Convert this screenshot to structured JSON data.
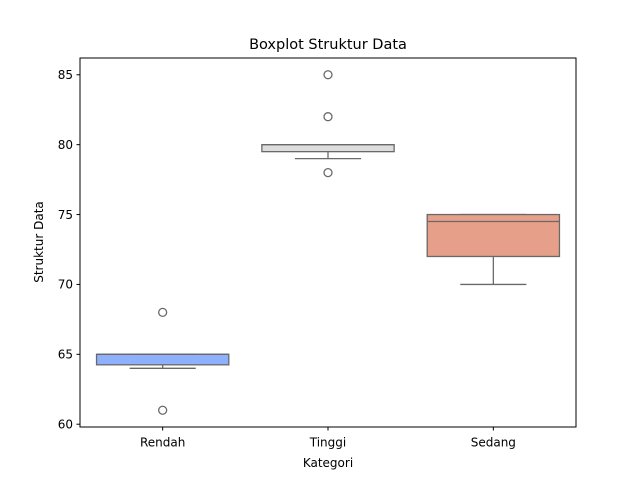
{
  "chart_data": {
    "type": "boxplot",
    "title": "Boxplot Struktur Data",
    "xlabel": "Kategori",
    "ylabel": "Struktur Data",
    "ylim": [
      59.8,
      86.2
    ],
    "yticks": [
      60,
      65,
      70,
      75,
      80,
      85
    ],
    "grid": false,
    "legend": "none",
    "categories": [
      "Rendah",
      "Tinggi",
      "Sedang"
    ],
    "boxes": [
      {
        "category": "Rendah",
        "whisker_low": 64.0,
        "q1": 64.25,
        "median": 65.0,
        "q3": 65.0,
        "whisker_high": 65.0,
        "outliers": [
          68,
          61
        ],
        "color": "#8fb0fd"
      },
      {
        "category": "Tinggi",
        "whisker_low": 79.0,
        "q1": 79.5,
        "median": 80.0,
        "q3": 80.0,
        "whisker_high": 80.0,
        "outliers": [
          85,
          82,
          78
        ],
        "color": "#dddddd"
      },
      {
        "category": "Sedang",
        "whisker_low": 70.0,
        "q1": 72.0,
        "median": 74.5,
        "q3": 75.0,
        "whisker_high": 75.0,
        "outliers": [],
        "color": "#e6a08a"
      }
    ]
  }
}
